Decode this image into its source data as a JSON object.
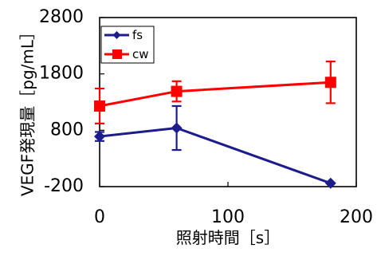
{
  "chart_data": {
    "type": "line",
    "xlabel": "照射時間［s］",
    "ylabel": "VEGF発現量［pg/mL］",
    "xlim": [
      0,
      200
    ],
    "ylim": [
      -200,
      2800
    ],
    "x_ticks": [
      "0",
      "100",
      "200"
    ],
    "y_ticks": [
      "-200",
      "800",
      "1800",
      "2800"
    ],
    "x_tick_values": [
      0,
      100,
      200
    ],
    "y_tick_values": [
      -200,
      800,
      1800,
      2800
    ],
    "grid": false,
    "legend_position": "top-left",
    "series": [
      {
        "name": "fs",
        "color": "#1c1c8c",
        "marker": "diamond",
        "x": [
          0,
          60,
          180
        ],
        "y": [
          690,
          840,
          -140
        ],
        "error": [
          80,
          390,
          0
        ]
      },
      {
        "name": "cw",
        "color": "#ff0000",
        "marker": "square",
        "x": [
          0,
          60,
          180
        ],
        "y": [
          1230,
          1490,
          1650
        ],
        "error": [
          310,
          180,
          370
        ]
      }
    ]
  }
}
